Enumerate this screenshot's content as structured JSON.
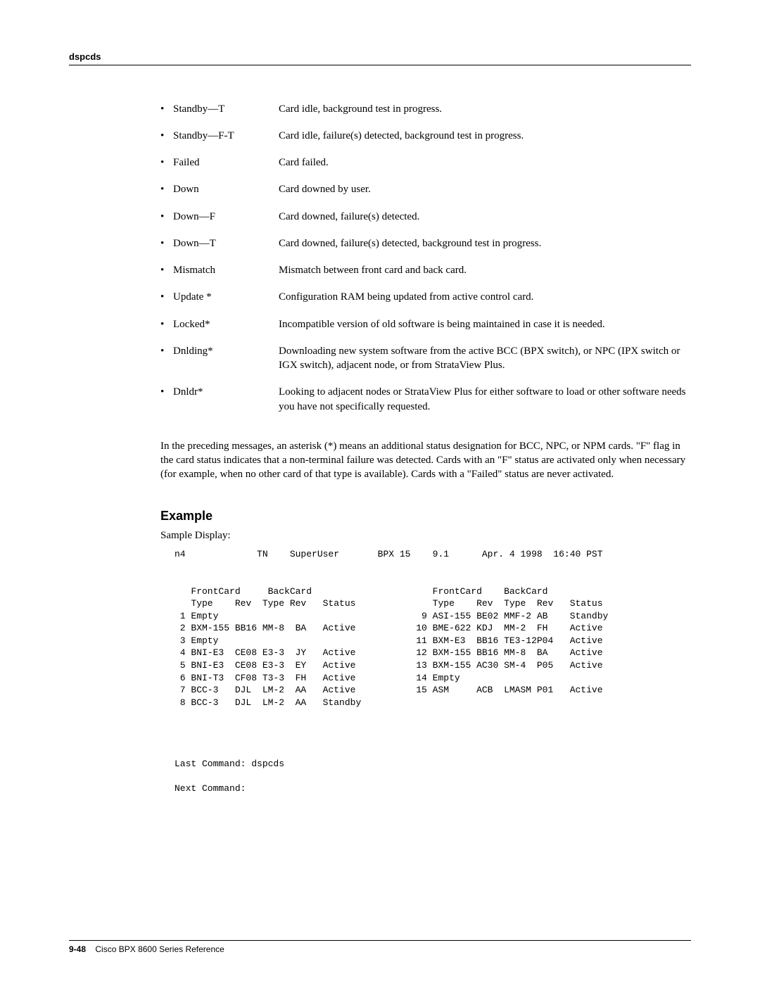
{
  "header": {
    "command": "dspcds"
  },
  "status_items": [
    {
      "term": "Standby—T",
      "desc": "Card idle, background test in progress."
    },
    {
      "term": "Standby—F-T",
      "desc": "Card idle, failure(s) detected, background test in progress."
    },
    {
      "term": "Failed",
      "desc": "Card failed."
    },
    {
      "term": "Down",
      "desc": "Card downed by user."
    },
    {
      "term": "Down—F",
      "desc": "Card downed, failure(s) detected."
    },
    {
      "term": "Down—T",
      "desc": "Card downed, failure(s) detected, background test in progress."
    },
    {
      "term": "Mismatch",
      "desc": "Mismatch between front card and back card."
    },
    {
      "term": "Update *",
      "desc": "Configuration RAM being updated from active control card."
    },
    {
      "term": "Locked*",
      "desc": "Incompatible version of old software is being maintained in case it is needed."
    },
    {
      "term": "Dnlding*",
      "desc": "Downloading new system software from the active BCC (BPX switch), or NPC (IPX switch or IGX switch), adjacent node, or from StrataView Plus."
    },
    {
      "term": "Dnldr*",
      "desc": "Looking to adjacent nodes or StrataView Plus for either software to load or other software needs you have not specifically requested."
    }
  ],
  "explanatory_para": "In the preceding messages, an asterisk (*) means an additional status designation for BCC, NPC, or NPM cards. \"F\" flag in the card status indicates that a non-terminal failure was detected. Cards with an \"F\" status are activated only when necessary (for example, when no other card of that type is available). Cards with a \"Failed\" status are never activated.",
  "example": {
    "heading": "Example",
    "label": "Sample Display:",
    "terminal_text": "n4             TN    SuperUser       BPX 15    9.1      Apr. 4 1998  16:40 PST\n\n\n   FrontCard     BackCard                      FrontCard    BackCard         \n   Type    Rev  Type Rev   Status              Type    Rev  Type  Rev   Status\n 1 Empty                                     9 ASI-155 BE02 MMF-2 AB    Standby\n 2 BXM-155 BB16 MM-8  BA   Active           10 BME-622 KDJ  MM-2  FH    Active\n 3 Empty                                    11 BXM-E3  BB16 TE3-12P04   Active\n 4 BNI-E3  CE08 E3-3  JY   Active           12 BXM-155 BB16 MM-8  BA    Active\n 5 BNI-E3  CE08 E3-3  EY   Active           13 BXM-155 AC30 SM-4  P05   Active\n 6 BNI-T3  CF08 T3-3  FH   Active           14 Empty\n 7 BCC-3   DJL  LM-2  AA   Active           15 ASM     ACB  LMASM P01   Active\n 8 BCC-3   DJL  LM-2  AA   Standby\n\n\n\n\nLast Command: dspcds\n\nNext Command:"
  },
  "footer": {
    "page_number": "9-48",
    "book_title": "Cisco BPX 8600 Series Reference"
  }
}
